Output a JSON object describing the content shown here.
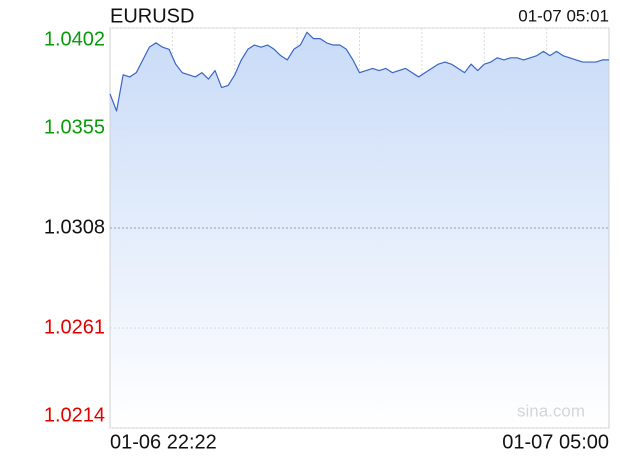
{
  "chart_data": {
    "type": "line",
    "title": "EURUSD",
    "timestamp": "01-07 05:01",
    "watermark": "sina.com",
    "categories": [
      "01-06 22:22",
      null,
      null,
      null,
      null,
      null,
      null,
      null,
      null,
      null,
      null,
      null,
      null,
      null,
      null,
      null,
      null,
      null,
      null,
      null,
      null,
      null,
      null,
      null,
      null,
      null,
      null,
      null,
      null,
      null,
      null,
      null,
      null,
      null,
      null,
      null,
      null,
      null,
      null,
      null,
      null,
      null,
      null,
      null,
      null,
      null,
      null,
      null,
      null,
      null,
      null,
      null,
      null,
      null,
      null,
      null,
      null,
      null,
      null,
      null,
      null,
      null,
      null,
      null,
      null,
      null,
      null,
      null,
      null,
      null,
      null,
      null,
      null,
      null,
      null,
      null,
      "01-07 05:00"
    ],
    "series": [
      {
        "name": "EURUSD",
        "color": "#3a66c4",
        "values": [
          1.0371,
          1.0363,
          1.038,
          1.0379,
          1.0381,
          1.0387,
          1.0393,
          1.0395,
          1.0393,
          1.0392,
          1.0385,
          1.0381,
          1.038,
          1.0379,
          1.0381,
          1.0378,
          1.0382,
          1.0374,
          1.0375,
          1.038,
          1.0387,
          1.0392,
          1.0394,
          1.0393,
          1.0394,
          1.0392,
          1.0389,
          1.0387,
          1.0392,
          1.0394,
          1.04,
          1.0397,
          1.0397,
          1.0395,
          1.0394,
          1.0394,
          1.0392,
          1.0387,
          1.0381,
          1.0382,
          1.0383,
          1.0382,
          1.0383,
          1.0381,
          1.0382,
          1.0383,
          1.0381,
          1.0379,
          1.0381,
          1.0383,
          1.0385,
          1.0386,
          1.0385,
          1.0383,
          1.0381,
          1.0385,
          1.0382,
          1.0385,
          1.0386,
          1.0388,
          1.0387,
          1.0388,
          1.0388,
          1.0387,
          1.0388,
          1.0389,
          1.0391,
          1.0389,
          1.0391,
          1.0389,
          1.0388,
          1.0387,
          1.0386,
          1.0386,
          1.0386,
          1.0387,
          1.0387
        ]
      }
    ],
    "ylim": [
      1.0214,
      1.0402
    ],
    "yticks": [
      1.0402,
      1.0355,
      1.0308,
      1.0261,
      1.0214
    ],
    "grid": true,
    "x_grid_divisions": 8,
    "fill_color": "#c9dbf8",
    "up_color": "#0a9a0a",
    "down_color": "#e00000",
    "neutral_color": "#111111"
  }
}
